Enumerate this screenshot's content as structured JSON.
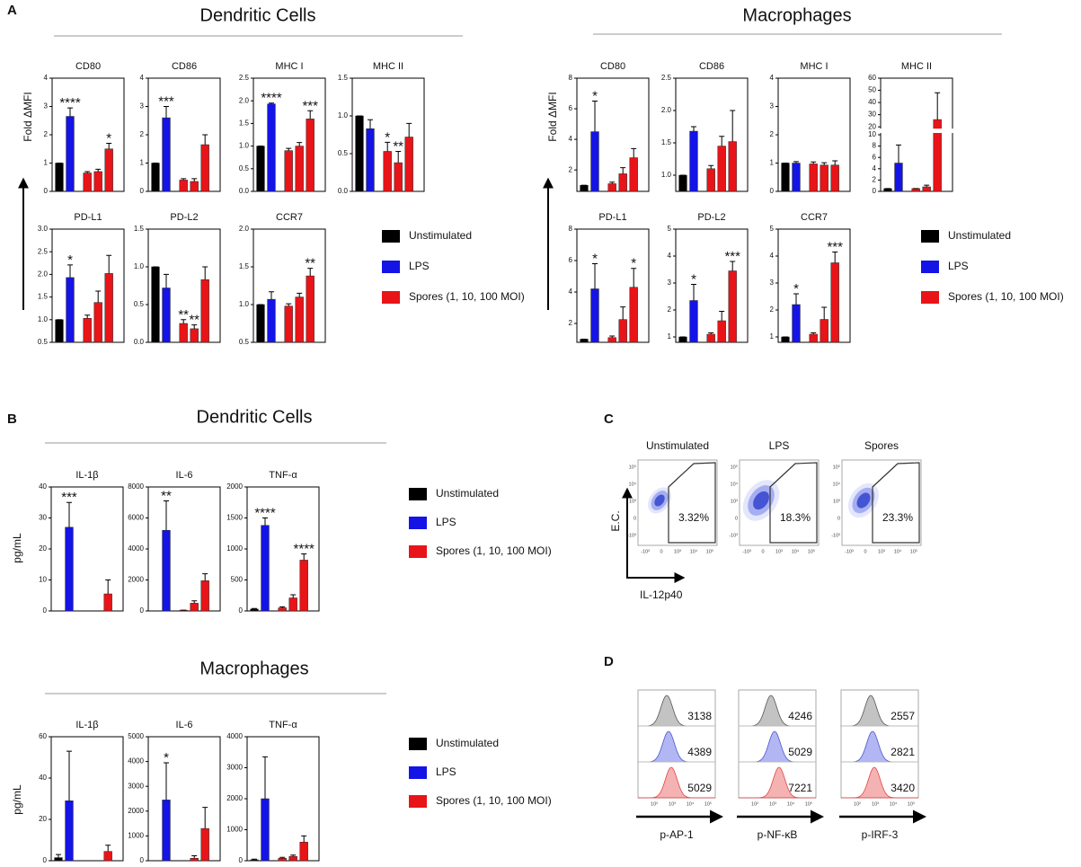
{
  "panel_labels": [
    "A",
    "B",
    "C",
    "D"
  ],
  "headings": [
    "Dendritic Cells",
    "Macrophages",
    "Dendritic Cells",
    "Macrophages"
  ],
  "y_axis_labels": [
    "Fold ΔMFI",
    "Fold ΔMFI",
    "pg/mL",
    "pg/mL"
  ],
  "legend": [
    {
      "name": "Unstimulated",
      "color": "#000000"
    },
    {
      "name": "LPS",
      "color": "#1414e6"
    },
    {
      "name": "Spores (1, 10, 100 MOI)",
      "color": "#e81418"
    }
  ],
  "chart_data": [
    {
      "type": "bar",
      "title": "CD80",
      "values": [
        1,
        2.65,
        0.65,
        0.7,
        1.5
      ],
      "errors": [
        0,
        0.3,
        0.05,
        0.08,
        0.2
      ],
      "annotations": [
        null,
        "****",
        null,
        null,
        "*"
      ],
      "colors": [
        "#000000",
        "#1414e6",
        "#e81418",
        "#e81418",
        "#e81418"
      ],
      "ylim": [
        0,
        4
      ],
      "yticks": [
        0,
        1,
        2,
        3,
        4
      ]
    },
    {
      "type": "bar",
      "title": "CD86",
      "values": [
        1,
        2.6,
        0.4,
        0.35,
        1.65
      ],
      "errors": [
        0,
        0.4,
        0.05,
        0.1,
        0.35
      ],
      "annotations": [
        null,
        "***",
        null,
        null,
        null
      ],
      "colors": [
        "#000000",
        "#1414e6",
        "#e81418",
        "#e81418",
        "#e81418"
      ],
      "ylim": [
        0,
        4
      ],
      "yticks": [
        0,
        1,
        2,
        3,
        4
      ]
    },
    {
      "type": "bar",
      "title": "MHC I",
      "values": [
        1,
        1.93,
        0.9,
        1.0,
        1.6
      ],
      "errors": [
        0,
        0.02,
        0.05,
        0.08,
        0.18
      ],
      "annotations": [
        null,
        "****",
        null,
        null,
        "***"
      ],
      "colors": [
        "#000000",
        "#1414e6",
        "#e81418",
        "#e81418",
        "#e81418"
      ],
      "ylim": [
        0,
        2.5
      ],
      "yticks": [
        {
          "value": 0,
          "label": "0.0"
        },
        0.5,
        {
          "value": 1,
          "label": "1.0"
        },
        1.5,
        {
          "value": 2,
          "label": "2.0"
        },
        2.5
      ]
    },
    {
      "type": "bar",
      "title": "MHC II",
      "values": [
        1,
        0.83,
        0.53,
        0.38,
        0.72
      ],
      "errors": [
        0,
        0.12,
        0.12,
        0.15,
        0.18
      ],
      "annotations": [
        null,
        null,
        "*",
        "**",
        null
      ],
      "colors": [
        "#000000",
        "#1414e6",
        "#e81418",
        "#e81418",
        "#e81418"
      ],
      "ylim": [
        0,
        1.5
      ],
      "yticks": [
        {
          "value": 0,
          "label": "0.0"
        },
        0.5,
        {
          "value": 1,
          "label": "1.0"
        },
        1.5
      ]
    },
    {
      "type": "bar",
      "title": "PD-L1",
      "values": [
        1,
        1.93,
        1.03,
        1.38,
        2.02
      ],
      "errors": [
        0,
        0.28,
        0.07,
        0.25,
        0.4
      ],
      "annotations": [
        null,
        "*",
        null,
        null,
        null
      ],
      "colors": [
        "#000000",
        "#1414e6",
        "#e81418",
        "#e81418",
        "#e81418"
      ],
      "ylim": [
        0.5,
        3
      ],
      "yticks": [
        0.5,
        {
          "value": 1,
          "label": "1.0"
        },
        1.5,
        {
          "value": 2,
          "label": "2.0"
        },
        2.5,
        {
          "value": 3,
          "label": "3.0"
        }
      ]
    },
    {
      "type": "bar",
      "title": "PD-L2",
      "values": [
        1,
        0.72,
        0.25,
        0.18,
        0.83
      ],
      "errors": [
        0,
        0.18,
        0.05,
        0.05,
        0.17
      ],
      "annotations": [
        null,
        null,
        "**",
        "**",
        null
      ],
      "colors": [
        "#000000",
        "#1414e6",
        "#e81418",
        "#e81418",
        "#e81418"
      ],
      "ylim": [
        0,
        1.5
      ],
      "yticks": [
        {
          "value": 0,
          "label": "0.0"
        },
        0.5,
        {
          "value": 1,
          "label": "1.0"
        },
        1.5
      ]
    },
    {
      "type": "bar",
      "title": "CCR7",
      "values": [
        1,
        1.07,
        0.98,
        1.1,
        1.38
      ],
      "errors": [
        0,
        0.1,
        0.03,
        0.05,
        0.1
      ],
      "annotations": [
        null,
        null,
        null,
        null,
        "**"
      ],
      "colors": [
        "#000000",
        "#1414e6",
        "#e81418",
        "#e81418",
        "#e81418"
      ],
      "ylim": [
        0.5,
        2
      ],
      "yticks": [
        0.5,
        {
          "value": 1,
          "label": "1.0"
        },
        1.5,
        {
          "value": 2,
          "label": "2.0"
        }
      ]
    },
    {
      "type": "bar",
      "title": "CD80",
      "values": [
        1,
        4.5,
        1.1,
        1.75,
        2.8
      ],
      "errors": [
        0,
        2,
        0.1,
        0.4,
        0.6
      ],
      "annotations": [
        null,
        "*",
        null,
        null,
        null
      ],
      "colors": [
        "#000000",
        "#1414e6",
        "#e81418",
        "#e81418",
        "#e81418"
      ],
      "ylim": [
        0.6,
        8
      ],
      "yticks": [
        2,
        4,
        6,
        8
      ]
    },
    {
      "type": "bar",
      "title": "CD86",
      "values": [
        1,
        1.68,
        1.1,
        1.45,
        1.52
      ],
      "errors": [
        0,
        0.07,
        0.05,
        0.15,
        0.48
      ],
      "annotations": [
        null,
        null,
        null,
        null,
        null
      ],
      "colors": [
        "#000000",
        "#1414e6",
        "#e81418",
        "#e81418",
        "#e81418"
      ],
      "ylim": [
        0.75,
        2.5
      ],
      "yticks": [
        {
          "value": 1,
          "label": "1.0"
        },
        1.5,
        {
          "value": 2,
          "label": "2.0"
        },
        2.5
      ]
    },
    {
      "type": "bar",
      "title": "MHC I",
      "values": [
        1,
        1,
        0.97,
        0.93,
        0.93
      ],
      "errors": [
        0,
        0.05,
        0.07,
        0.08,
        0.15
      ],
      "annotations": [
        null,
        null,
        null,
        null,
        null
      ],
      "colors": [
        "#000000",
        "#1414e6",
        "#e81418",
        "#e81418",
        "#e81418"
      ],
      "ylim": [
        0,
        4
      ],
      "yticks": [
        0,
        1,
        2,
        3,
        4
      ]
    },
    {
      "type": "bar",
      "title": "MHC II",
      "values": [
        0.5,
        5,
        0.5,
        0.8,
        26
      ],
      "errors": [
        0,
        3.2,
        0,
        0.3,
        22
      ],
      "annotations": [
        null,
        null,
        null,
        null,
        null
      ],
      "colors": [
        "#000000",
        "#1414e6",
        "#e81418",
        "#e81418",
        "#e81418"
      ],
      "ylim": [
        0,
        60
      ],
      "yticks": [
        0,
        2,
        4,
        6,
        8,
        10,
        20,
        30,
        40,
        50,
        60
      ],
      "broken_axis": true
    },
    {
      "type": "bar",
      "title": "PD-L1",
      "values": [
        1,
        4.2,
        1.1,
        2.25,
        4.3
      ],
      "errors": [
        0,
        1.6,
        0.1,
        0.8,
        1.2
      ],
      "annotations": [
        null,
        "*",
        null,
        null,
        "*"
      ],
      "colors": [
        "#000000",
        "#1414e6",
        "#e81418",
        "#e81418",
        "#e81418"
      ],
      "ylim": [
        0.8,
        8
      ],
      "yticks": [
        2,
        4,
        6,
        8
      ]
    },
    {
      "type": "bar",
      "title": "PD-L2",
      "values": [
        1,
        2.35,
        1.1,
        1.6,
        3.45
      ],
      "errors": [
        0,
        0.6,
        0.05,
        0.35,
        0.35
      ],
      "annotations": [
        null,
        "*",
        null,
        null,
        "***"
      ],
      "colors": [
        "#000000",
        "#1414e6",
        "#e81418",
        "#e81418",
        "#e81418"
      ],
      "ylim": [
        0.8,
        5
      ],
      "yticks": [
        1,
        2,
        3,
        4,
        5
      ]
    },
    {
      "type": "bar",
      "title": "CCR7",
      "values": [
        1,
        2.2,
        1.1,
        1.65,
        3.75
      ],
      "errors": [
        0,
        0.4,
        0.05,
        0.45,
        0.4
      ],
      "annotations": [
        null,
        "*",
        null,
        null,
        "***"
      ],
      "colors": [
        "#000000",
        "#1414e6",
        "#e81418",
        "#e81418",
        "#e81418"
      ],
      "ylim": [
        0.8,
        5
      ],
      "yticks": [
        1,
        2,
        3,
        4,
        5
      ]
    },
    {
      "type": "bar",
      "title": "IL-1β",
      "values": [
        0,
        27,
        0,
        0,
        5.5
      ],
      "errors": [
        0,
        8,
        0,
        0,
        4.5
      ],
      "annotations": [
        null,
        "***",
        null,
        null,
        null
      ],
      "colors": [
        "#000000",
        "#1414e6",
        "#e81418",
        "#e81418",
        "#e81418"
      ],
      "ylim": [
        0,
        40
      ],
      "yticks": [
        0,
        10,
        20,
        30,
        40
      ]
    },
    {
      "type": "bar",
      "title": "IL-6",
      "values": [
        0,
        5200,
        50,
        500,
        1950
      ],
      "errors": [
        0,
        1900,
        0,
        150,
        450
      ],
      "annotations": [
        null,
        "**",
        null,
        null,
        null
      ],
      "colors": [
        "#000000",
        "#1414e6",
        "#e81418",
        "#e81418",
        "#e81418"
      ],
      "ylim": [
        0,
        8000
      ],
      "yticks": [
        0,
        2000,
        4000,
        6000,
        8000
      ]
    },
    {
      "type": "bar",
      "title": "TNF-α",
      "values": [
        30,
        1380,
        50,
        210,
        820
      ],
      "errors": [
        10,
        120,
        15,
        50,
        100
      ],
      "annotations": [
        null,
        "****",
        null,
        null,
        "****"
      ],
      "colors": [
        "#000000",
        "#1414e6",
        "#e81418",
        "#e81418",
        "#e81418"
      ],
      "ylim": [
        0,
        2000
      ],
      "yticks": [
        0,
        500,
        1000,
        1500,
        2000
      ]
    },
    {
      "type": "bar",
      "title": "IL-1β",
      "values": [
        1.5,
        29,
        0,
        0,
        4.5
      ],
      "errors": [
        1.5,
        24,
        0,
        0,
        3
      ],
      "annotations": [
        null,
        null,
        null,
        null,
        null
      ],
      "colors": [
        "#000000",
        "#1414e6",
        "#e81418",
        "#e81418",
        "#e81418"
      ],
      "ylim": [
        0,
        60
      ],
      "yticks": [
        0,
        20,
        40,
        60
      ]
    },
    {
      "type": "bar",
      "title": "IL-6",
      "values": [
        0,
        2450,
        0,
        100,
        1300
      ],
      "errors": [
        0,
        1500,
        0,
        100,
        850
      ],
      "annotations": [
        null,
        "*",
        null,
        null,
        null
      ],
      "colors": [
        "#000000",
        "#1414e6",
        "#e81418",
        "#e81418",
        "#e81418"
      ],
      "ylim": [
        0,
        5000
      ],
      "yticks": [
        0,
        1000,
        2000,
        3000,
        4000,
        5000
      ]
    },
    {
      "type": "bar",
      "title": "TNF-α",
      "values": [
        30,
        2000,
        80,
        140,
        600
      ],
      "errors": [
        20,
        1350,
        30,
        40,
        200
      ],
      "annotations": [
        null,
        null,
        null,
        null,
        null
      ],
      "colors": [
        "#000000",
        "#1414e6",
        "#e81418",
        "#e81418",
        "#e81418"
      ],
      "ylim": [
        0,
        4000
      ],
      "yticks": [
        0,
        1000,
        2000,
        3000,
        4000
      ]
    }
  ],
  "flow": {
    "titles": [
      "Unstimulated",
      "LPS",
      "Spores"
    ],
    "gates": [
      "3.32%",
      "18.3%",
      "23.3%"
    ],
    "y_label": "E.C.",
    "x_label": "IL-12p40",
    "y_ticks": [
      "10⁵",
      "10⁴",
      "10³",
      "0",
      "-10³"
    ],
    "x_ticks": [
      "-10³",
      "0",
      "10³",
      "10⁴",
      "10⁵"
    ]
  },
  "histograms": {
    "labels": [
      "p-AP-1",
      "p-NF-κB",
      "p-IRF-3"
    ],
    "mfi": [
      [
        3138,
        4389,
        5029
      ],
      [
        4246,
        5029,
        7221
      ],
      [
        2557,
        2821,
        3420
      ]
    ],
    "x_ticks": [
      "10²",
      "10³",
      "10⁴",
      "10⁵"
    ]
  }
}
